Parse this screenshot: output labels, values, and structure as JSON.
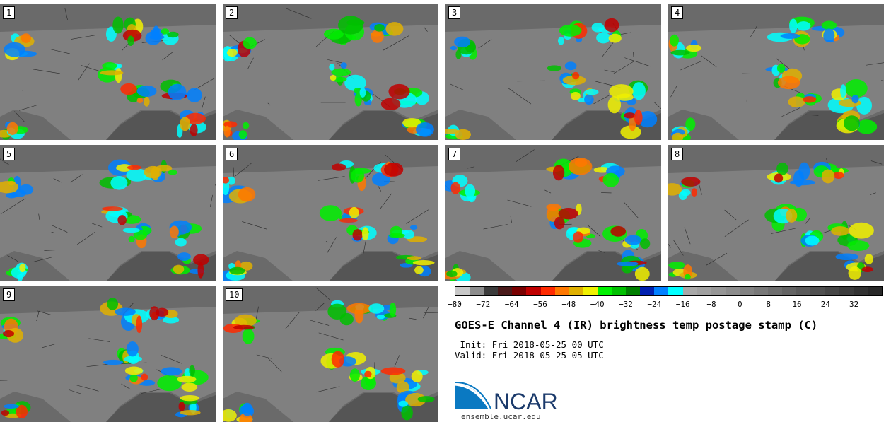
{
  "panels": [
    {
      "label": "1"
    },
    {
      "label": "2"
    },
    {
      "label": "3"
    },
    {
      "label": "4"
    },
    {
      "label": "5"
    },
    {
      "label": "6"
    },
    {
      "label": "7"
    },
    {
      "label": "8"
    },
    {
      "label": "9"
    },
    {
      "label": "10"
    }
  ],
  "colorbar": {
    "colors": [
      "#c8c8c8",
      "#8c8c8c",
      "#3c3c3c",
      "#4a1a1a",
      "#7a0000",
      "#c00000",
      "#ff2a00",
      "#ff7800",
      "#e0b000",
      "#f0f000",
      "#00f000",
      "#00c000",
      "#008000",
      "#0020b0",
      "#0080ff",
      "#00ffff",
      "#a8a8a8",
      "#a0a0a0",
      "#969696",
      "#8c8c8c",
      "#828282",
      "#787878",
      "#6e6e6e",
      "#646464",
      "#5a5a5a",
      "#505050",
      "#464646",
      "#3c3c3c",
      "#323232",
      "#282828"
    ],
    "tick_labels": [
      "−80",
      "−72",
      "−64",
      "−56",
      "−48",
      "−40",
      "−32",
      "−24",
      "−16",
      "−8",
      "0",
      "8",
      "16",
      "24",
      "32"
    ],
    "range": [
      -80,
      40
    ]
  },
  "title": "GOES-E Channel 4 (IR) brightness temp postage stamp (C)",
  "init_line": " Init: Fri 2018-05-25 00 UTC",
  "valid_line": "Valid: Fri 2018-05-25 05 UTC",
  "logo_text": "NCAR",
  "url": "ensemble.ucar.edu"
}
